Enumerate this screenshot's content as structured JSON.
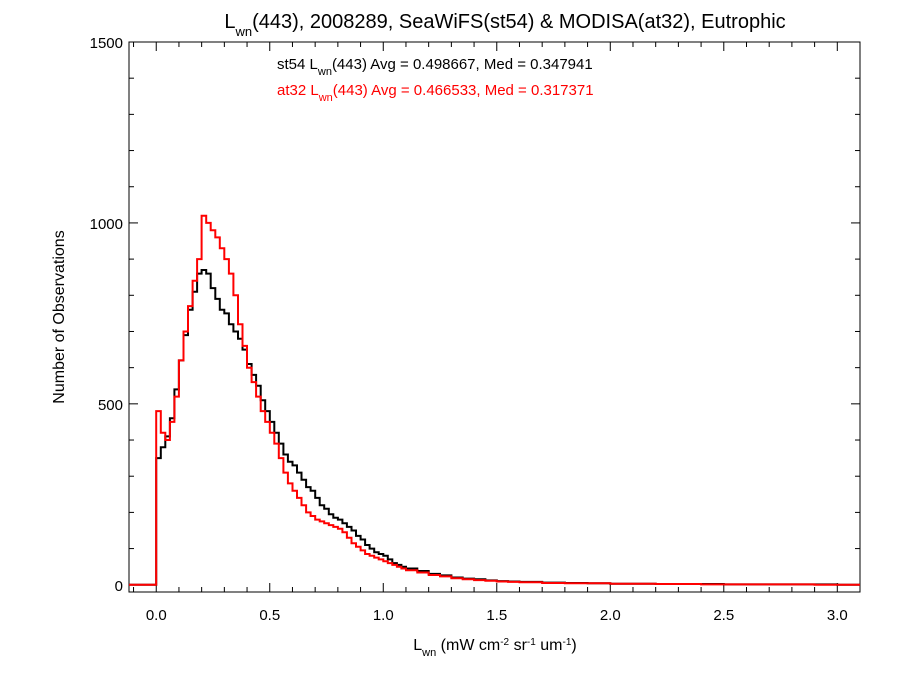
{
  "chart_data": {
    "type": "line",
    "title": {
      "main": "L",
      "sub": "wn",
      "rest": "(443), 2008289, SeaWiFS(st54) & MODISA(at32), Eutrophic"
    },
    "xlabel": {
      "main": "L",
      "sub": "wn",
      "unit_a": " (mW cm",
      "sup_a": "-2",
      "unit_b": " sr",
      "sup_b": "-1",
      "unit_c": " um",
      "sup_c": "-1",
      "close": ")"
    },
    "ylabel": "Number of Observations",
    "xlim": [
      -0.12,
      3.1
    ],
    "ylim": [
      -20,
      1500
    ],
    "x_ticks": [
      {
        "value": 0.0,
        "label": "0.0"
      },
      {
        "value": 0.5,
        "label": "0.5"
      },
      {
        "value": 1.0,
        "label": "1.0"
      },
      {
        "value": 1.5,
        "label": "1.5"
      },
      {
        "value": 2.0,
        "label": "2.0"
      },
      {
        "value": 2.5,
        "label": "2.5"
      },
      {
        "value": 3.0,
        "label": "3.0"
      }
    ],
    "y_ticks": [
      {
        "value": 0,
        "label": "0"
      },
      {
        "value": 500,
        "label": "500"
      },
      {
        "value": 1000,
        "label": "1000"
      },
      {
        "value": 1500,
        "label": "1500"
      }
    ],
    "annotations": [
      {
        "pre": "st54 L",
        "sub": "wn",
        "post": "(443) Avg = 0.498667, Med = 0.347941",
        "color": "#000000"
      },
      {
        "pre": "at32 L",
        "sub": "wn",
        "post": "(443) Avg = 0.466533, Med = 0.317371",
        "color": "#ff0000"
      }
    ],
    "series": [
      {
        "color": "#000000",
        "x": [
          -0.12,
          0,
          0.02,
          0.04,
          0.06,
          0.08,
          0.1,
          0.12,
          0.14,
          0.16,
          0.18,
          0.2,
          0.22,
          0.24,
          0.26,
          0.28,
          0.3,
          0.32,
          0.34,
          0.36,
          0.38,
          0.4,
          0.42,
          0.44,
          0.46,
          0.48,
          0.5,
          0.52,
          0.54,
          0.56,
          0.58,
          0.6,
          0.62,
          0.64,
          0.66,
          0.68,
          0.7,
          0.72,
          0.74,
          0.76,
          0.78,
          0.8,
          0.82,
          0.84,
          0.86,
          0.88,
          0.9,
          0.92,
          0.94,
          0.96,
          0.98,
          1.0,
          1.02,
          1.04,
          1.06,
          1.08,
          1.1,
          1.15,
          1.2,
          1.25,
          1.3,
          1.35,
          1.4,
          1.45,
          1.5,
          1.55,
          1.6,
          1.7,
          1.8,
          1.9,
          2.0,
          2.1,
          2.2,
          2.3,
          2.4,
          2.5,
          2.6,
          2.7,
          2.8,
          2.9,
          3.0,
          3.1
        ],
        "y": [
          0,
          350,
          380,
          410,
          460,
          540,
          620,
          690,
          760,
          810,
          860,
          870,
          860,
          820,
          790,
          760,
          750,
          720,
          700,
          680,
          650,
          610,
          580,
          550,
          510,
          480,
          450,
          420,
          390,
          360,
          340,
          330,
          310,
          290,
          270,
          260,
          240,
          220,
          210,
          195,
          185,
          180,
          170,
          160,
          150,
          135,
          125,
          110,
          100,
          90,
          85,
          80,
          70,
          60,
          55,
          50,
          45,
          38,
          30,
          26,
          20,
          17,
          15,
          12,
          10,
          9,
          8,
          6,
          5,
          4,
          3,
          3,
          2,
          2,
          2,
          1,
          1,
          1,
          1,
          1,
          0,
          0
        ]
      },
      {
        "color": "#ff0000",
        "x": [
          -0.12,
          0,
          0.02,
          0.04,
          0.06,
          0.08,
          0.1,
          0.12,
          0.14,
          0.16,
          0.18,
          0.2,
          0.22,
          0.24,
          0.26,
          0.28,
          0.3,
          0.32,
          0.34,
          0.36,
          0.38,
          0.4,
          0.42,
          0.44,
          0.46,
          0.48,
          0.5,
          0.52,
          0.54,
          0.56,
          0.58,
          0.6,
          0.62,
          0.64,
          0.66,
          0.68,
          0.7,
          0.72,
          0.74,
          0.76,
          0.78,
          0.8,
          0.82,
          0.84,
          0.86,
          0.88,
          0.9,
          0.92,
          0.94,
          0.96,
          0.98,
          1.0,
          1.02,
          1.04,
          1.06,
          1.08,
          1.1,
          1.15,
          1.2,
          1.25,
          1.3,
          1.35,
          1.4,
          1.45,
          1.5,
          1.55,
          1.6,
          1.7,
          1.8,
          1.9,
          2.0,
          2.1,
          2.2,
          2.3,
          2.4,
          2.5,
          2.6,
          2.7,
          2.8,
          2.9,
          3.0,
          3.1
        ],
        "y": [
          0,
          480,
          420,
          400,
          450,
          520,
          620,
          700,
          770,
          840,
          900,
          1020,
          1000,
          980,
          960,
          930,
          900,
          860,
          800,
          720,
          660,
          600,
          560,
          520,
          480,
          450,
          420,
          390,
          350,
          310,
          280,
          260,
          240,
          220,
          200,
          190,
          180,
          175,
          170,
          165,
          160,
          155,
          145,
          130,
          115,
          105,
          95,
          85,
          80,
          75,
          70,
          65,
          60,
          55,
          50,
          45,
          40,
          34,
          27,
          23,
          18,
          15,
          13,
          11,
          9,
          8,
          7,
          5,
          4,
          4,
          3,
          3,
          2,
          2,
          1,
          1,
          1,
          1,
          1,
          0,
          0,
          0
        ]
      }
    ],
    "grid": false
  }
}
